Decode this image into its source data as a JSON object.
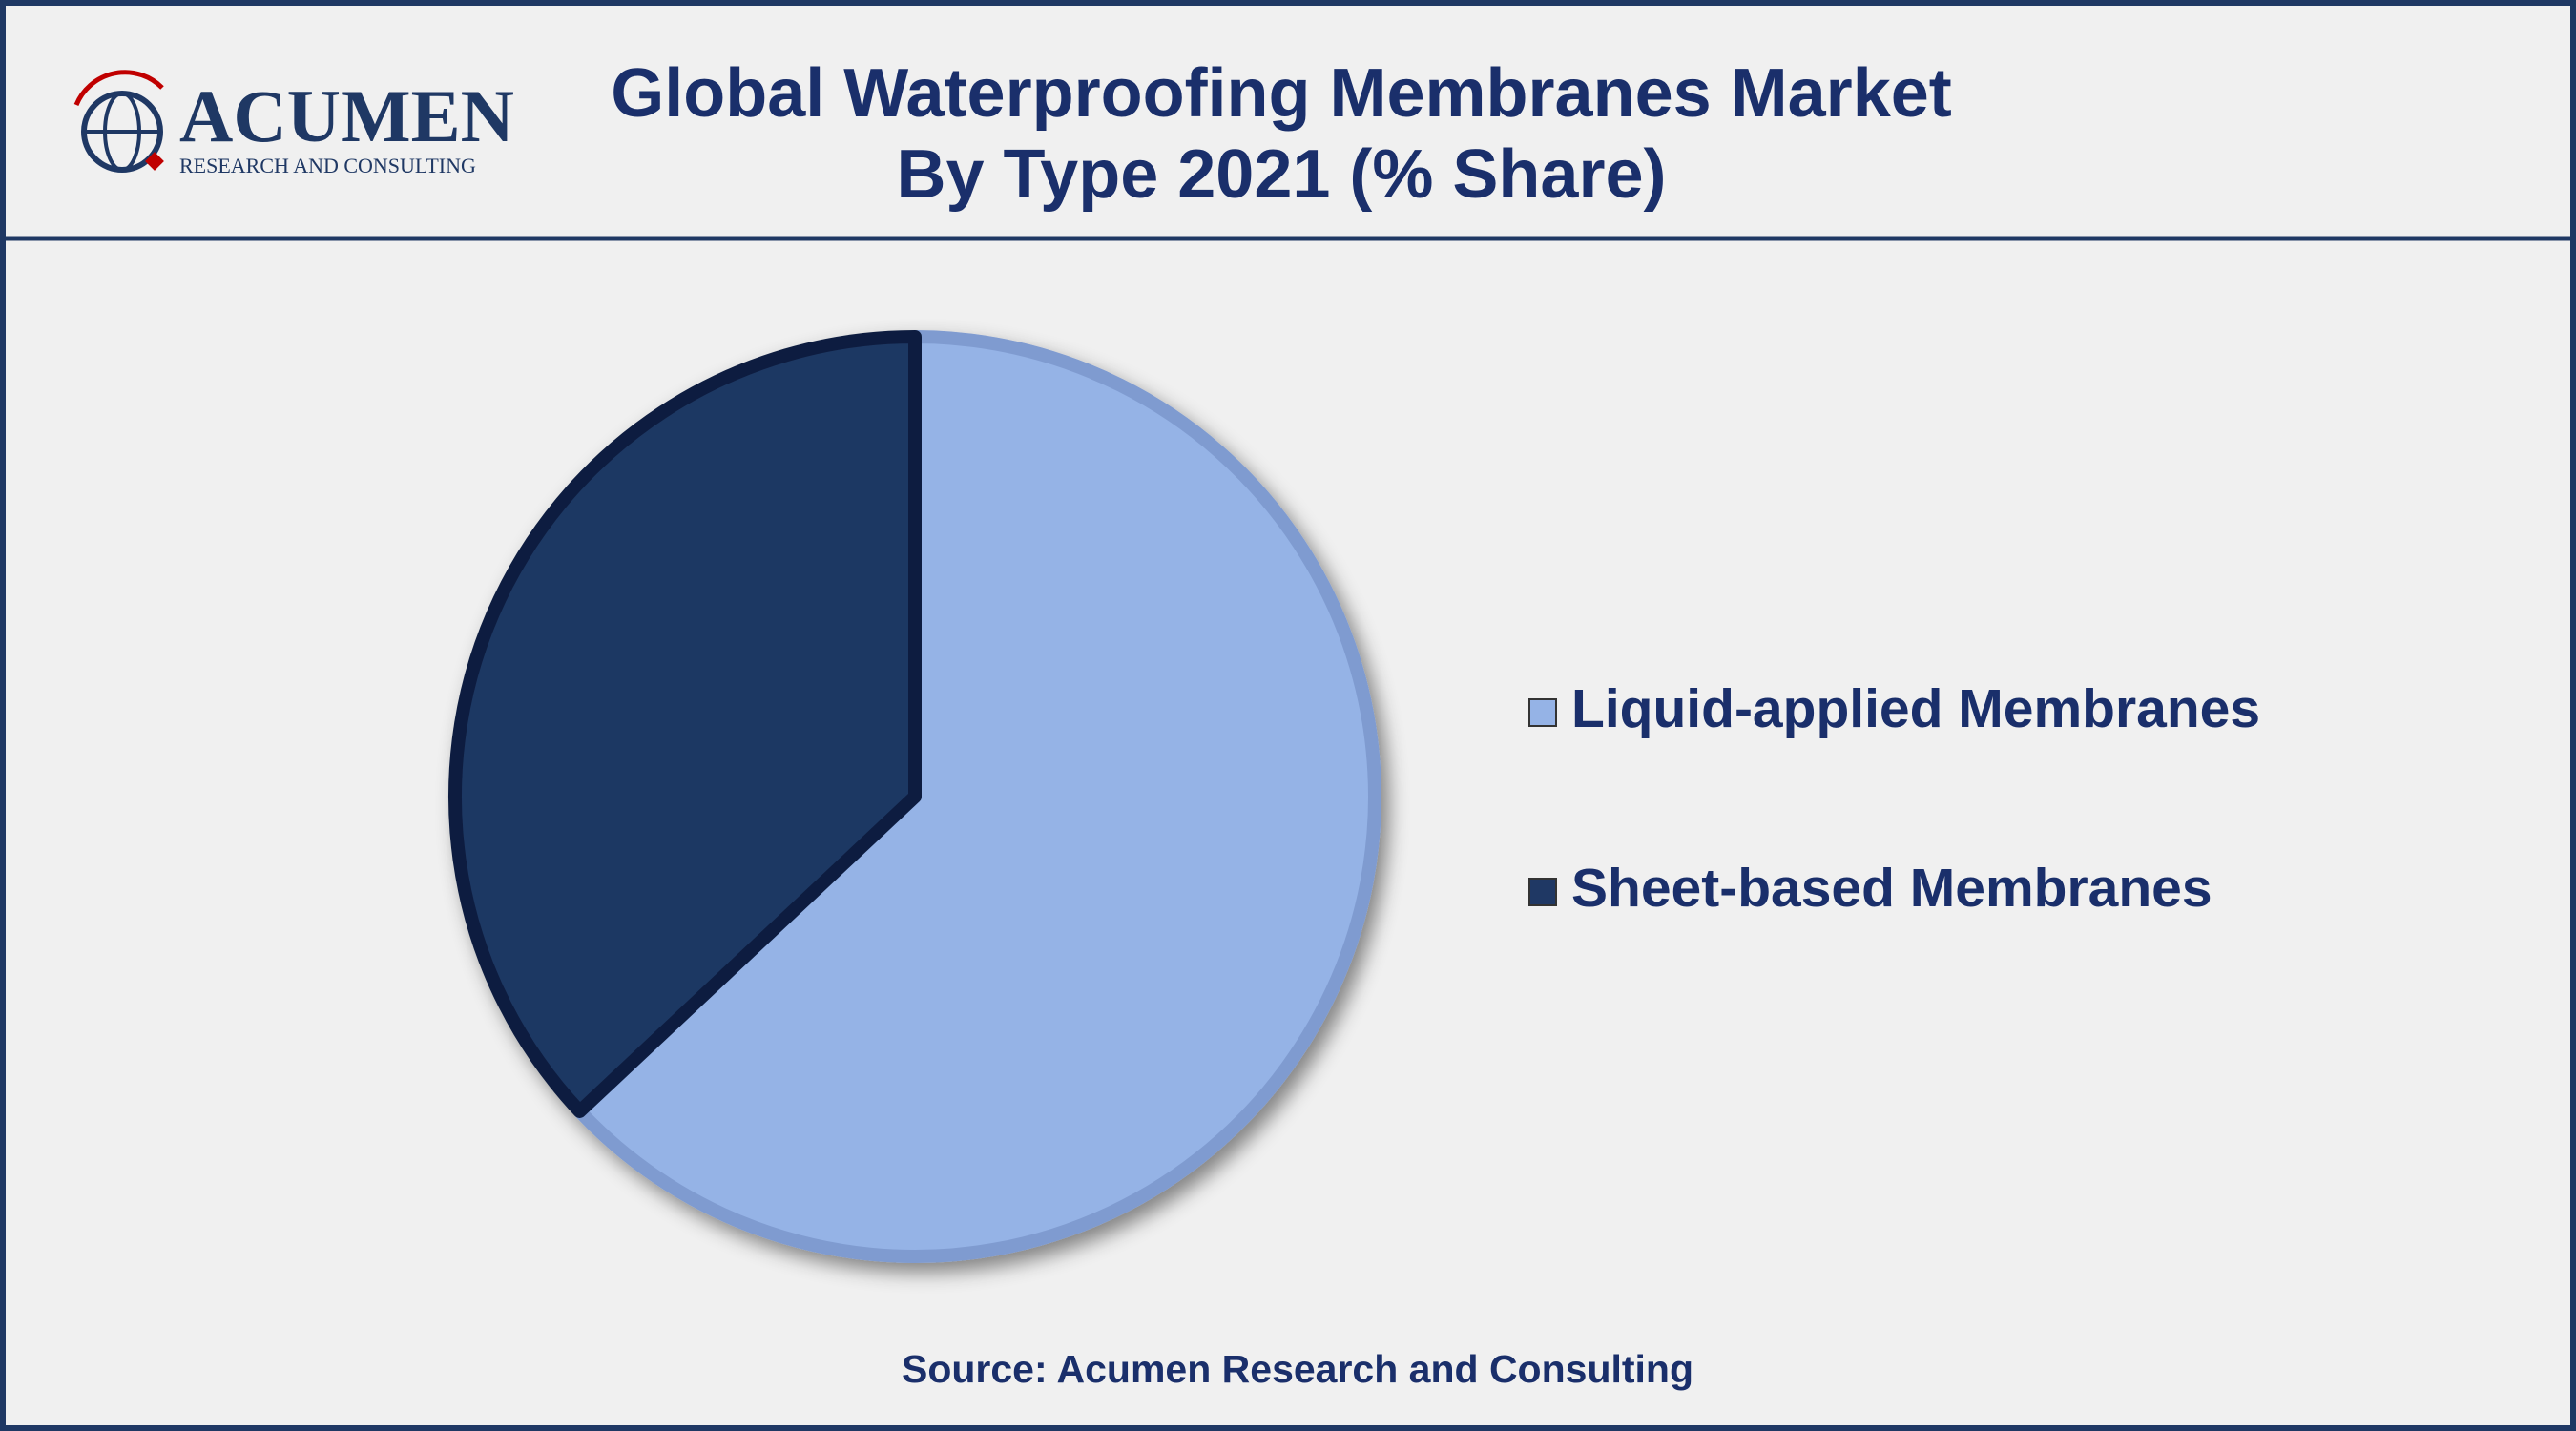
{
  "logo": {
    "name": "ACUMEN",
    "tagline": "RESEARCH AND CONSULTING"
  },
  "chart_data": {
    "type": "pie",
    "title": [
      "Global Waterproofing Membranes Market",
      "By Type 2021 (% Share)"
    ],
    "categories": [
      "Liquid-applied Membranes",
      "Sheet-based Membranes"
    ],
    "values": [
      63,
      37
    ],
    "colors": [
      "#95b3e6",
      "#1f3864"
    ],
    "legend": "right",
    "source": "Source: Acumen Research and Consulting"
  }
}
